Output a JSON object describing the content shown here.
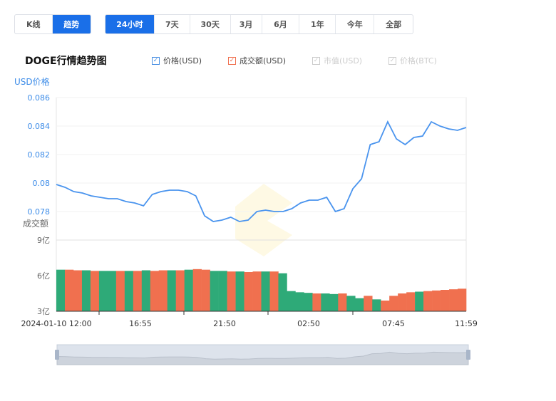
{
  "modes": [
    {
      "label": "K线",
      "active": false
    },
    {
      "label": "趋势",
      "active": true
    }
  ],
  "ranges": [
    {
      "label": "24小时",
      "active": true
    },
    {
      "label": "7天"
    },
    {
      "label": "30天"
    },
    {
      "label": "3月"
    },
    {
      "label": "6月"
    },
    {
      "label": "1年"
    },
    {
      "label": "今年"
    },
    {
      "label": "全部"
    }
  ],
  "title": "DOGE行情趋势图",
  "legend": [
    {
      "label": "价格(USD)",
      "checked": true,
      "color": "#4a90e2"
    },
    {
      "label": "成交额(USD)",
      "checked": true,
      "color": "#f0704f"
    },
    {
      "label": "市值(USD)",
      "checked": false,
      "color": "#cccccc"
    },
    {
      "label": "价格(BTC)",
      "checked": false,
      "color": "#cccccc"
    }
  ],
  "chart_data": {
    "type": "line",
    "price_axis_label": "USD价格",
    "volume_axis_label": "成交额",
    "price_ticks": [
      "0.086",
      "0.084",
      "0.082",
      "0.08",
      "0.078"
    ],
    "price_ylim": [
      0.076,
      0.086
    ],
    "volume_ticks": [
      "9亿",
      "6亿",
      "3亿"
    ],
    "volume_ylim": [
      3,
      9
    ],
    "x_ticks": [
      "2024-01-10 12:00",
      "16:55",
      "21:50",
      "02:50",
      "07:45",
      "11:59"
    ],
    "price_color": "#4a94ee",
    "up_color": "#f0704f",
    "down_color": "#2eaa78",
    "price": [
      0.0799,
      0.0797,
      0.0794,
      0.0793,
      0.0791,
      0.079,
      0.0789,
      0.0789,
      0.0787,
      0.0786,
      0.0784,
      0.0792,
      0.0794,
      0.0795,
      0.0795,
      0.0794,
      0.0791,
      0.0777,
      0.0773,
      0.0774,
      0.0776,
      0.0773,
      0.0774,
      0.078,
      0.0781,
      0.078,
      0.078,
      0.0782,
      0.0786,
      0.0788,
      0.0788,
      0.079,
      0.078,
      0.0782,
      0.0796,
      0.0803,
      0.0827,
      0.0829,
      0.0843,
      0.0831,
      0.0827,
      0.0832,
      0.0833,
      0.0843,
      0.084,
      0.0838,
      0.0837,
      0.0839
    ],
    "volume": [
      6.5,
      6.5,
      6.45,
      6.45,
      6.4,
      6.4,
      6.4,
      6.4,
      6.4,
      6.4,
      6.45,
      6.4,
      6.45,
      6.45,
      6.45,
      6.5,
      6.55,
      6.5,
      6.4,
      6.4,
      6.35,
      6.35,
      6.3,
      6.35,
      6.35,
      6.35,
      6.2,
      4.7,
      4.6,
      4.55,
      4.5,
      4.5,
      4.45,
      4.5,
      4.3,
      4.1,
      4.3,
      4.0,
      3.9,
      4.3,
      4.5,
      4.6,
      4.65,
      4.7,
      4.75,
      4.8,
      4.85,
      4.9
    ],
    "volume_dir": [
      "d",
      "u",
      "u",
      "d",
      "u",
      "d",
      "d",
      "u",
      "d",
      "u",
      "d",
      "u",
      "u",
      "d",
      "u",
      "d",
      "u",
      "u",
      "d",
      "d",
      "u",
      "d",
      "u",
      "u",
      "d",
      "u",
      "d",
      "d",
      "d",
      "d",
      "u",
      "d",
      "d",
      "u",
      "d",
      "d",
      "u",
      "d",
      "u",
      "u",
      "u",
      "u",
      "d",
      "u",
      "u",
      "u",
      "u",
      "u"
    ]
  }
}
